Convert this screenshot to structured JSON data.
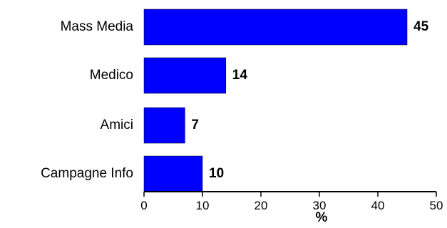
{
  "chart_data": {
    "type": "bar",
    "orientation": "horizontal",
    "categories": [
      "Mass Media",
      "Medico",
      "Amici",
      "Campagne Info"
    ],
    "values": [
      45,
      14,
      7,
      10
    ],
    "title": "",
    "xlabel": "%",
    "ylabel": "",
    "xlim": [
      0,
      50
    ],
    "xticks": [
      0,
      10,
      20,
      30,
      40,
      50
    ],
    "grid": false,
    "legend": "none",
    "bar_color": "#0000ff",
    "data_labels": [
      "45",
      "14",
      "7",
      "10"
    ]
  }
}
